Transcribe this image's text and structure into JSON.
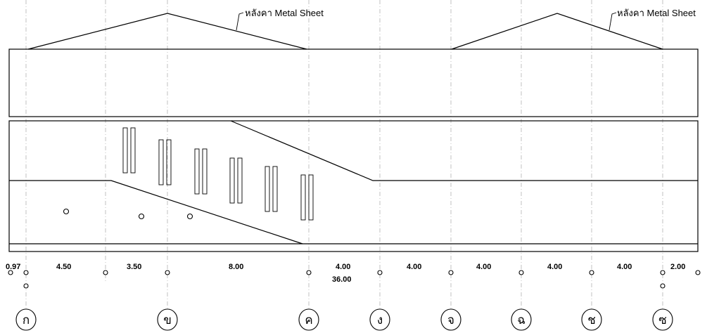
{
  "roof_labels": [
    "หลังคา Metal Sheet",
    "หลังคา Metal Sheet"
  ],
  "dimensions": [
    "0.97",
    "4.50",
    "3.50",
    "8.00",
    "4.00",
    "4.00",
    "4.00",
    "4.00",
    "4.00",
    "2.00"
  ],
  "total_dimension": "36.00",
  "grid_labels": [
    "ก",
    "ข",
    "ค",
    "ง",
    "จ",
    "ฉ",
    "ช",
    "ซ"
  ]
}
